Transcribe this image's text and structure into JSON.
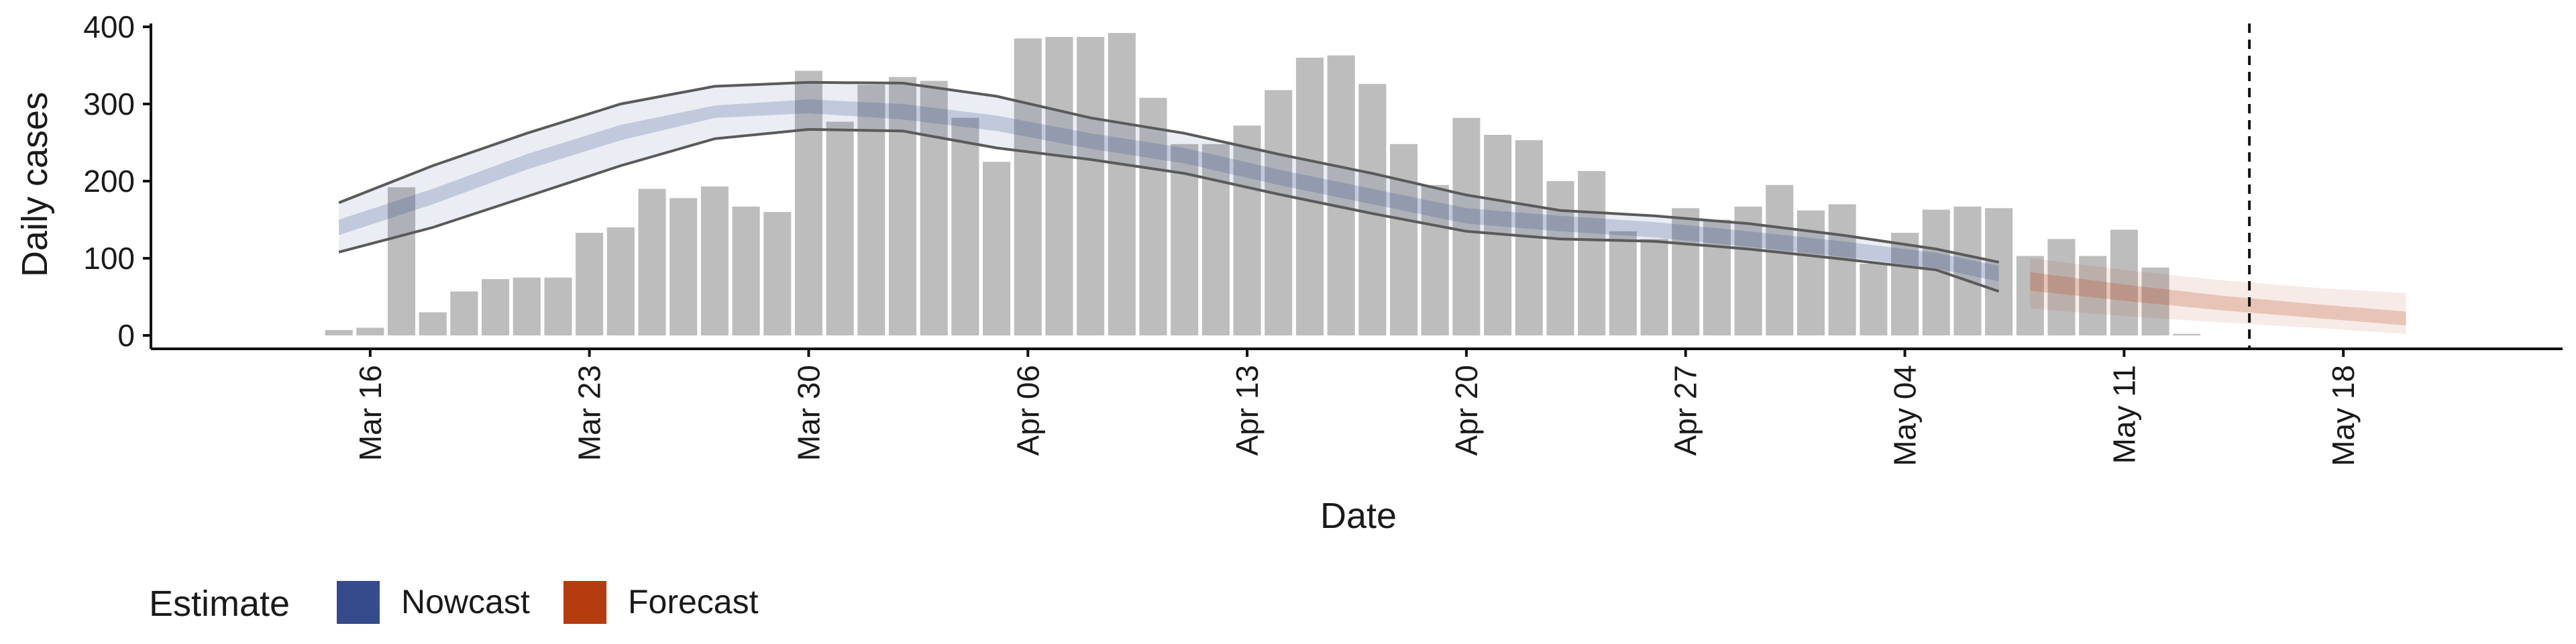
{
  "chart_data": {
    "type": "bar",
    "xlabel": "Date",
    "ylabel": "Daily cases",
    "ylim": [
      0,
      400
    ],
    "y_ticks": [
      0,
      100,
      200,
      300,
      400
    ],
    "x_ticks": [
      {
        "date": "2020-03-16",
        "label": "Mar 16"
      },
      {
        "date": "2020-03-23",
        "label": "Mar 23"
      },
      {
        "date": "2020-03-30",
        "label": "Mar 30"
      },
      {
        "date": "2020-04-06",
        "label": "Apr 06"
      },
      {
        "date": "2020-04-13",
        "label": "Apr 13"
      },
      {
        "date": "2020-04-20",
        "label": "Apr 20"
      },
      {
        "date": "2020-04-27",
        "label": "Apr 27"
      },
      {
        "date": "2020-05-04",
        "label": "May 04"
      },
      {
        "date": "2020-05-11",
        "label": "May 11"
      },
      {
        "date": "2020-05-18",
        "label": "May 18"
      }
    ],
    "xlim": [
      "2020-03-09",
      "2020-05-25"
    ],
    "grid": false,
    "vline_date": "2020-05-15",
    "bars": {
      "color": "#bdbdbd",
      "dates": [
        "2020-03-15",
        "2020-03-16",
        "2020-03-17",
        "2020-03-18",
        "2020-03-19",
        "2020-03-20",
        "2020-03-21",
        "2020-03-22",
        "2020-03-23",
        "2020-03-24",
        "2020-03-25",
        "2020-03-26",
        "2020-03-27",
        "2020-03-28",
        "2020-03-29",
        "2020-03-30",
        "2020-03-31",
        "2020-04-01",
        "2020-04-02",
        "2020-04-03",
        "2020-04-04",
        "2020-04-05",
        "2020-04-06",
        "2020-04-07",
        "2020-04-08",
        "2020-04-09",
        "2020-04-10",
        "2020-04-11",
        "2020-04-12",
        "2020-04-13",
        "2020-04-14",
        "2020-04-15",
        "2020-04-16",
        "2020-04-17",
        "2020-04-18",
        "2020-04-19",
        "2020-04-20",
        "2020-04-21",
        "2020-04-22",
        "2020-04-23",
        "2020-04-24",
        "2020-04-25",
        "2020-04-26",
        "2020-04-27",
        "2020-04-28",
        "2020-04-29",
        "2020-04-30",
        "2020-05-01",
        "2020-05-02",
        "2020-05-03",
        "2020-05-04",
        "2020-05-05",
        "2020-05-06",
        "2020-05-07",
        "2020-05-08",
        "2020-05-09",
        "2020-05-10",
        "2020-05-11",
        "2020-05-12",
        "2020-05-13"
      ],
      "values": [
        7,
        10,
        192,
        30,
        57,
        73,
        75,
        75,
        133,
        140,
        190,
        178,
        193,
        167,
        160,
        343,
        277,
        325,
        335,
        330,
        282,
        225,
        385,
        387,
        387,
        392,
        308,
        248,
        248,
        272,
        318,
        360,
        363,
        326,
        248,
        195,
        282,
        260,
        253,
        200,
        213,
        135,
        125,
        165,
        150,
        167,
        195,
        162,
        170,
        93,
        133,
        163,
        167,
        165,
        103,
        125,
        103,
        137,
        88,
        2
      ]
    },
    "series": [
      {
        "name": "Nowcast",
        "color": "#344b8c",
        "dates": [
          "2020-03-15",
          "2020-03-18",
          "2020-03-21",
          "2020-03-24",
          "2020-03-27",
          "2020-03-30",
          "2020-04-02",
          "2020-04-05",
          "2020-04-08",
          "2020-04-11",
          "2020-04-14",
          "2020-04-17",
          "2020-04-20",
          "2020-04-23",
          "2020-04-26",
          "2020-04-29",
          "2020-05-02",
          "2020-05-05",
          "2020-05-07"
        ],
        "median": [
          140,
          180,
          225,
          263,
          290,
          297,
          290,
          275,
          252,
          233,
          205,
          180,
          155,
          145,
          137,
          125,
          112,
          97,
          80
        ],
        "inner_lower": [
          130,
          170,
          215,
          253,
          282,
          288,
          280,
          265,
          242,
          223,
          195,
          170,
          145,
          135,
          127,
          115,
          102,
          87,
          70
        ],
        "inner_upper": [
          150,
          190,
          235,
          273,
          298,
          306,
          300,
          285,
          262,
          243,
          215,
          190,
          165,
          155,
          147,
          135,
          122,
          107,
          90
        ],
        "lower": [
          108,
          140,
          180,
          220,
          255,
          267,
          265,
          243,
          228,
          210,
          183,
          158,
          135,
          125,
          122,
          112,
          99,
          85,
          57
        ],
        "upper": [
          172,
          220,
          262,
          300,
          323,
          328,
          327,
          310,
          282,
          262,
          235,
          210,
          182,
          162,
          155,
          145,
          130,
          112,
          95
        ]
      },
      {
        "name": "Forecast",
        "color": "#b43c0f",
        "dates": [
          "2020-05-08",
          "2020-05-11",
          "2020-05-14",
          "2020-05-17",
          "2020-05-20"
        ],
        "median": [
          70,
          55,
          42,
          32,
          22
        ],
        "inner_lower": [
          58,
          45,
          33,
          23,
          13
        ],
        "inner_upper": [
          82,
          66,
          52,
          41,
          31
        ],
        "lower": [
          35,
          25,
          17,
          10,
          2
        ],
        "upper": [
          100,
          85,
          72,
          62,
          55
        ]
      }
    ],
    "legend": {
      "title": "Estimate",
      "position": "bottom-left",
      "items": [
        {
          "label": "Nowcast",
          "color": "#344b8c"
        },
        {
          "label": "Forecast",
          "color": "#b43c0f"
        }
      ]
    }
  }
}
